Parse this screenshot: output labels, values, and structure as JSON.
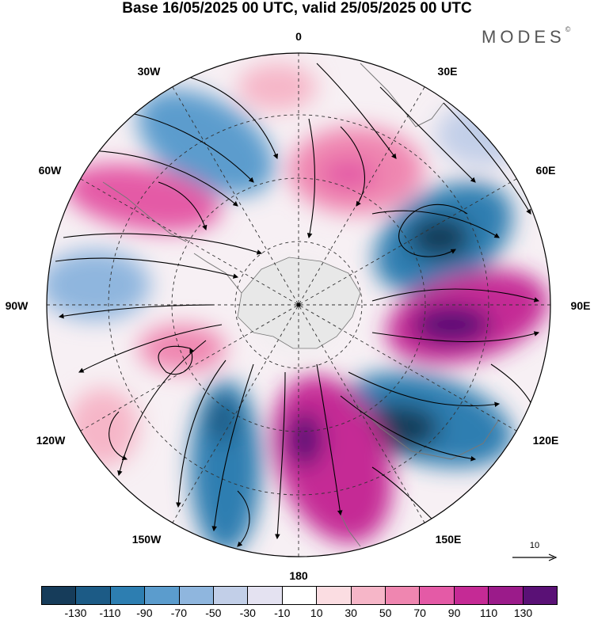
{
  "title": "Base 16/05/2025 00 UTC, valid 25/05/2025 00 UTC",
  "brand": "MODES",
  "brand_mark": "©",
  "longitudes": {
    "top": "0",
    "tr1": "30E",
    "tr2": "60E",
    "right": "90E",
    "br1": "120E",
    "br2": "150E",
    "bottom": "180",
    "bl1": "150W",
    "bl2": "120W",
    "left": "90W",
    "tl2": "60W",
    "tl1": "30W"
  },
  "vector_reference": "10",
  "colorbar": {
    "colors": [
      "#163c5a",
      "#1c5b86",
      "#2d7eb1",
      "#5b9ccd",
      "#8fb6de",
      "#c2cfe8",
      "#e4e2f1",
      "#ffffff",
      "#fbdde2",
      "#f6b6c8",
      "#ef86b0",
      "#e45aa6",
      "#c52a95",
      "#9b1b8a",
      "#5a1176"
    ],
    "ticks": [
      "-130",
      "-110",
      "-90",
      "-70",
      "-50",
      "-30",
      "-10",
      "10",
      "30",
      "50",
      "70",
      "90",
      "110",
      "130"
    ]
  }
}
